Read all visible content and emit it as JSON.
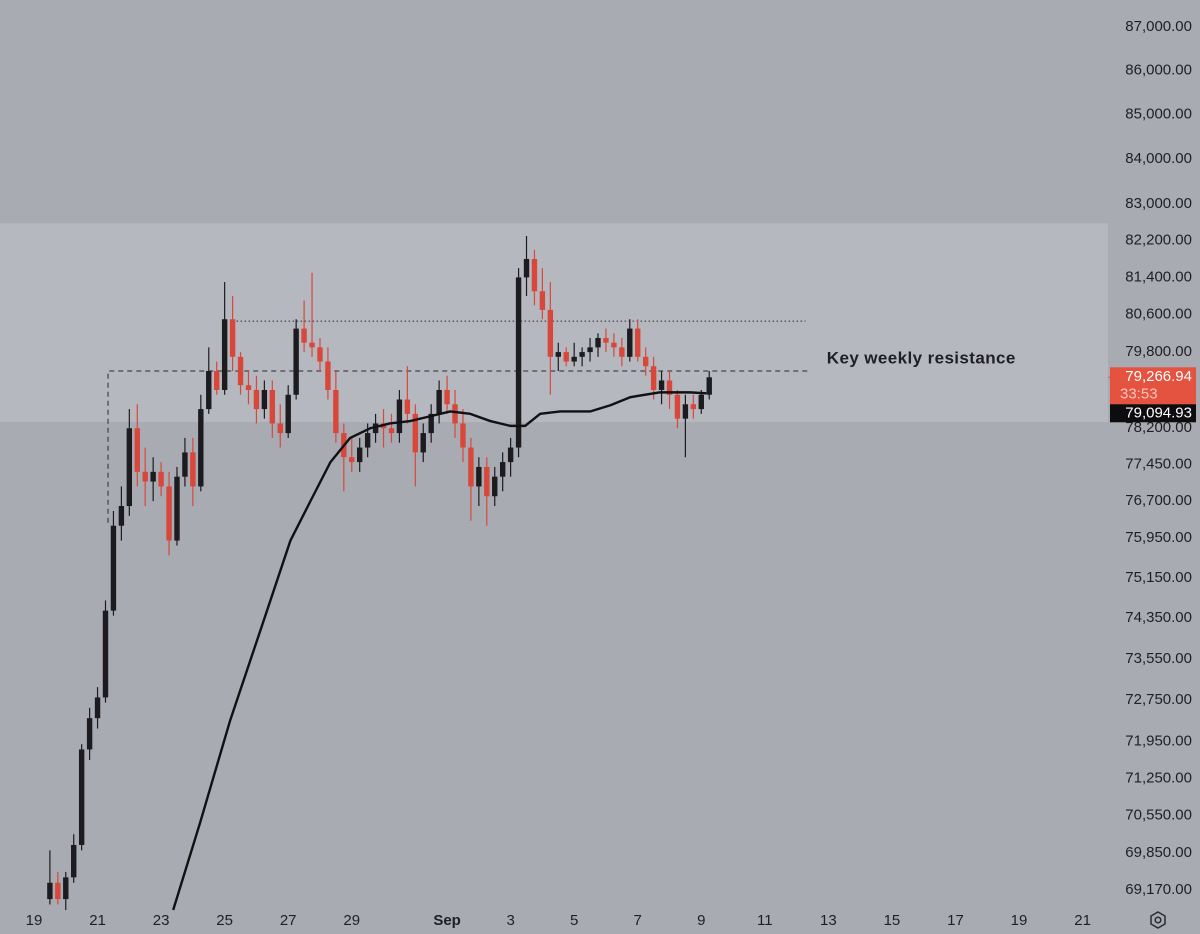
{
  "chart_data": {
    "type": "candlestick",
    "log_y": true,
    "up_color": "#1c1c20",
    "down_color": "#d9473a",
    "xlim": [
      -1.07,
      33.8
    ],
    "ylim": [
      68800,
      87630
    ],
    "xticks": [
      {
        "value": 0,
        "label": "19"
      },
      {
        "value": 2,
        "label": "21"
      },
      {
        "value": 4,
        "label": "23"
      },
      {
        "value": 6,
        "label": "25"
      },
      {
        "value": 8,
        "label": "27"
      },
      {
        "value": 10,
        "label": "29"
      },
      {
        "value": 13,
        "label": "Sep"
      },
      {
        "value": 15,
        "label": "3"
      },
      {
        "value": 17,
        "label": "5"
      },
      {
        "value": 19,
        "label": "7"
      },
      {
        "value": 21,
        "label": "9"
      },
      {
        "value": 23,
        "label": "11"
      },
      {
        "value": 25,
        "label": "13"
      },
      {
        "value": 27,
        "label": "15"
      },
      {
        "value": 29,
        "label": "17"
      },
      {
        "value": 31,
        "label": "19"
      },
      {
        "value": 33,
        "label": "21"
      }
    ],
    "yticks": [
      {
        "value": 87000,
        "label": "87,000.00"
      },
      {
        "value": 86000,
        "label": "86,000.00"
      },
      {
        "value": 85000,
        "label": "85,000.00"
      },
      {
        "value": 84000,
        "label": "84,000.00"
      },
      {
        "value": 83000,
        "label": "83,000.00"
      },
      {
        "value": 82200,
        "label": "82,200.00"
      },
      {
        "value": 81400,
        "label": "81,400.00"
      },
      {
        "value": 80600,
        "label": "80,600.00"
      },
      {
        "value": 79800,
        "label": "79,800.00"
      },
      {
        "value": 78200,
        "label": "78,200.00"
      },
      {
        "value": 77450,
        "label": "77,450.00"
      },
      {
        "value": 76700,
        "label": "76,700.00"
      },
      {
        "value": 75950,
        "label": "75,950.00"
      },
      {
        "value": 75150,
        "label": "75,150.00"
      },
      {
        "value": 74350,
        "label": "74,350.00"
      },
      {
        "value": 73550,
        "label": "73,550.00"
      },
      {
        "value": 72750,
        "label": "72,750.00"
      },
      {
        "value": 71950,
        "label": "71,950.00"
      },
      {
        "value": 71250,
        "label": "71,250.00"
      },
      {
        "value": 70550,
        "label": "70,550.00"
      },
      {
        "value": 69850,
        "label": "69,850.00"
      },
      {
        "value": 69170,
        "label": "69,170.00"
      }
    ],
    "x": [
      0.5,
      0.75,
      1,
      1.25,
      1.5,
      1.75,
      2,
      2.25,
      2.5,
      2.75,
      3,
      3.25,
      3.5,
      3.75,
      4,
      4.25,
      4.5,
      4.75,
      5,
      5.25,
      5.5,
      5.75,
      6,
      6.25,
      6.5,
      6.75,
      7,
      7.25,
      7.5,
      7.75,
      8,
      8.25,
      8.5,
      8.75,
      9,
      9.25,
      9.5,
      9.75,
      10,
      10.25,
      10.5,
      10.75,
      11,
      11.25,
      11.5,
      11.75,
      12,
      12.25,
      12.5,
      12.75,
      13,
      13.25,
      13.5,
      13.75,
      14,
      14.25,
      14.5,
      14.75,
      15,
      15.25,
      15.5,
      15.75,
      16,
      16.25,
      16.5,
      16.75,
      17,
      17.25,
      17.5,
      17.75,
      18,
      18.25,
      18.5,
      18.75,
      19,
      19.25,
      19.5,
      19.75,
      20,
      20.25,
      20.5,
      20.75,
      21,
      21.25
    ],
    "open": [
      69000,
      69300,
      69000,
      69400,
      70000,
      71800,
      72400,
      72800,
      74500,
      76200,
      76600,
      78200,
      77300,
      77100,
      77300,
      77000,
      75900,
      77200,
      77700,
      77000,
      78600,
      79400,
      79000,
      80500,
      79700,
      79100,
      79000,
      78600,
      79000,
      78300,
      78100,
      78900,
      80300,
      80000,
      79900,
      79600,
      79000,
      78100,
      77600,
      77500,
      77800,
      78100,
      78300,
      78200,
      78100,
      78800,
      78500,
      77700,
      78100,
      78500,
      79000,
      78700,
      78300,
      77800,
      77000,
      77400,
      76800,
      77200,
      77500,
      77800,
      81400,
      81800,
      81100,
      80700,
      79700,
      79800,
      79600,
      79700,
      79800,
      79900,
      80100,
      80000,
      79900,
      79700,
      80300,
      79700,
      79500,
      79000,
      79200,
      78900,
      78400,
      78700,
      78600,
      78900
    ],
    "high": [
      69900,
      69500,
      69500,
      70200,
      71900,
      72600,
      73000,
      74700,
      76500,
      77000,
      78600,
      78700,
      77800,
      77600,
      77500,
      77300,
      77400,
      78000,
      78000,
      78900,
      79900,
      79600,
      81300,
      81000,
      79800,
      79400,
      79300,
      79200,
      79200,
      78700,
      79100,
      80500,
      80900,
      81500,
      80100,
      79900,
      79400,
      78300,
      78000,
      78000,
      78300,
      78500,
      78600,
      78500,
      79000,
      79500,
      78700,
      78300,
      78700,
      79200,
      79300,
      79000,
      78600,
      78000,
      77600,
      77600,
      77400,
      77700,
      78000,
      81600,
      82300,
      82000,
      81600,
      81300,
      80000,
      79900,
      80000,
      79900,
      80100,
      80200,
      80300,
      80200,
      80100,
      80500,
      80500,
      79900,
      79700,
      79400,
      79400,
      79000,
      78900,
      78900,
      79000,
      79400
    ],
    "low": [
      68900,
      68900,
      68800,
      69300,
      69900,
      71600,
      72200,
      72700,
      74400,
      75900,
      76400,
      77000,
      76600,
      76700,
      76800,
      75600,
      75800,
      77000,
      76600,
      76900,
      78500,
      78900,
      78900,
      79400,
      78900,
      78700,
      78300,
      78400,
      78000,
      77800,
      78000,
      78800,
      79800,
      79700,
      79400,
      78800,
      77900,
      76900,
      77300,
      77300,
      77600,
      77900,
      77800,
      77900,
      77900,
      78300,
      77000,
      77500,
      77900,
      78300,
      78500,
      78000,
      77500,
      76300,
      76600,
      76200,
      76600,
      76900,
      77200,
      77600,
      81000,
      80800,
      80500,
      78900,
      79400,
      79500,
      79500,
      79500,
      79600,
      79700,
      79800,
      79700,
      79500,
      79600,
      79600,
      79300,
      78800,
      78700,
      78600,
      78200,
      77600,
      78400,
      78500,
      78800
    ],
    "close": [
      69300,
      69000,
      69400,
      70000,
      71800,
      72400,
      72800,
      74500,
      76200,
      76600,
      78200,
      77300,
      77100,
      77300,
      77000,
      75900,
      77200,
      77700,
      77000,
      78600,
      79400,
      79000,
      80500,
      79700,
      79100,
      79000,
      78600,
      79000,
      78300,
      78100,
      78900,
      80300,
      80000,
      79900,
      79600,
      79000,
      78100,
      77600,
      77500,
      77800,
      78100,
      78300,
      78200,
      78100,
      78800,
      78500,
      77700,
      78100,
      78500,
      79000,
      78700,
      78300,
      77800,
      77000,
      77400,
      76800,
      77200,
      77500,
      77800,
      81400,
      81800,
      81100,
      80700,
      79700,
      79800,
      79600,
      79700,
      79800,
      79900,
      80100,
      80000,
      79900,
      79700,
      80300,
      79700,
      79500,
      79000,
      79200,
      78900,
      78400,
      78700,
      78600,
      78900,
      79266.94
    ],
    "ma": {
      "color": "#111114",
      "x": [
        4.38,
        5.22,
        6.17,
        7.12,
        8.07,
        8.7,
        9.33,
        9.95,
        10.58,
        11.2,
        11.84,
        12.47,
        13.1,
        13.73,
        14.36,
        14.99,
        15.46,
        15.93,
        16.56,
        17.5,
        18.14,
        18.77,
        19.7,
        20.65,
        21.16
      ],
      "values": [
        68800,
        70400,
        72350,
        74100,
        75900,
        76700,
        77500,
        78000,
        78200,
        78300,
        78350,
        78450,
        78550,
        78500,
        78350,
        78250,
        78250,
        78500,
        78550,
        78550,
        78680,
        78850,
        78950,
        78950,
        78930
      ]
    },
    "zone": {
      "low": 78330,
      "high": 82580,
      "color": "#b6b8bf"
    },
    "lines": [
      {
        "style": "dashed",
        "x": [
          2.33,
          2.33,
          24.37
        ],
        "values": [
          76260,
          79400,
          79400
        ]
      },
      {
        "style": "dotted",
        "x": [
          6.25,
          24.28
        ],
        "values": [
          80460,
          80460
        ]
      }
    ],
    "annotation": {
      "text": "Key weekly resistance",
      "x": 24.95,
      "value": 79650
    },
    "last_price": {
      "value": 79266.94,
      "label": "79,266.94",
      "color": "#e4533f"
    },
    "countdown": "33:53",
    "ma_price": {
      "value": 79094.93,
      "label": "79,094.93"
    }
  }
}
